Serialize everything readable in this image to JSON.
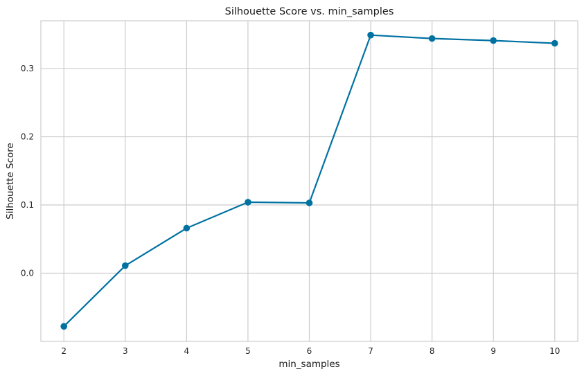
{
  "chart_data": {
    "type": "line",
    "title": "Silhouette Score vs. min_samples",
    "xlabel": "min_samples",
    "ylabel": "Silhouette Score",
    "x": [
      2,
      3,
      4,
      5,
      6,
      7,
      8,
      9,
      10
    ],
    "series": [
      {
        "values": [
          -0.078,
          0.011,
          0.066,
          0.104,
          0.103,
          0.349,
          0.344,
          0.341,
          0.337
        ]
      }
    ],
    "x_ticks": [
      2,
      3,
      4,
      5,
      6,
      7,
      8,
      9,
      10
    ],
    "y_ticks": [
      0.0,
      0.1,
      0.2,
      0.3
    ],
    "y_tick_labels": [
      "0.0",
      "0.1",
      "0.2",
      "0.3"
    ],
    "xlim": [
      1.625,
      10.375
    ],
    "ylim": [
      -0.1,
      0.37
    ],
    "grid": true,
    "colors": {
      "line": "#0072a2",
      "grid": "#cccccc",
      "frame": "#cccccc",
      "background": "#ffffff"
    }
  }
}
